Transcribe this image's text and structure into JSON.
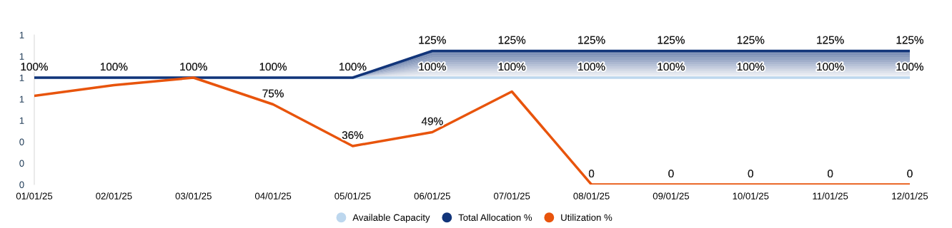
{
  "chart_data": {
    "type": "line",
    "categories": [
      "01/01/25",
      "02/01/25",
      "03/01/25",
      "04/01/25",
      "05/01/25",
      "06/01/25",
      "07/01/25",
      "08/01/25",
      "09/01/25",
      "10/01/25",
      "11/01/25",
      "12/01/25"
    ],
    "series": [
      {
        "name": "Available Capacity",
        "color": "#bdd7ee",
        "values": [
          1,
          1,
          1,
          1,
          1,
          1,
          1,
          1,
          1,
          1,
          1,
          1
        ],
        "value_labels": [
          "100%",
          "100%",
          "100%",
          "100%",
          "100%",
          "100%",
          "100%",
          "100%",
          "100%",
          "100%",
          "100%",
          "100%"
        ]
      },
      {
        "name": "Total Allocation %",
        "type": "area",
        "color": "#12357a",
        "values": [
          1,
          1,
          1,
          1,
          1,
          1.25,
          1.25,
          1.25,
          1.25,
          1.25,
          1.25,
          1.25
        ],
        "value_labels": [
          null,
          null,
          null,
          null,
          null,
          "125%",
          "125%",
          "125%",
          "125%",
          "125%",
          "125%",
          "125%"
        ]
      },
      {
        "name": "Utilization %",
        "color": "#e8540c",
        "values": [
          0.83,
          0.93,
          1,
          0.75,
          0.36,
          0.49,
          0.87,
          0,
          0,
          0,
          0,
          0
        ],
        "value_labels": [
          null,
          null,
          null,
          "75%",
          "36%",
          "49%",
          null,
          "0",
          "0",
          "0",
          "0",
          "0"
        ]
      }
    ],
    "ylim": [
      0,
      1.4
    ],
    "yticks": [
      {
        "value": 0,
        "label": "0"
      },
      {
        "value": 0.2,
        "label": "0"
      },
      {
        "value": 0.4,
        "label": "0"
      },
      {
        "value": 0.6,
        "label": "1"
      },
      {
        "value": 0.8,
        "label": "1"
      },
      {
        "value": 1.0,
        "label": "1"
      },
      {
        "value": 1.2,
        "label": "1"
      },
      {
        "value": 1.4,
        "label": "1"
      }
    ],
    "grid": false,
    "legend": "bottom",
    "marker": "none",
    "line_style": "solid"
  }
}
